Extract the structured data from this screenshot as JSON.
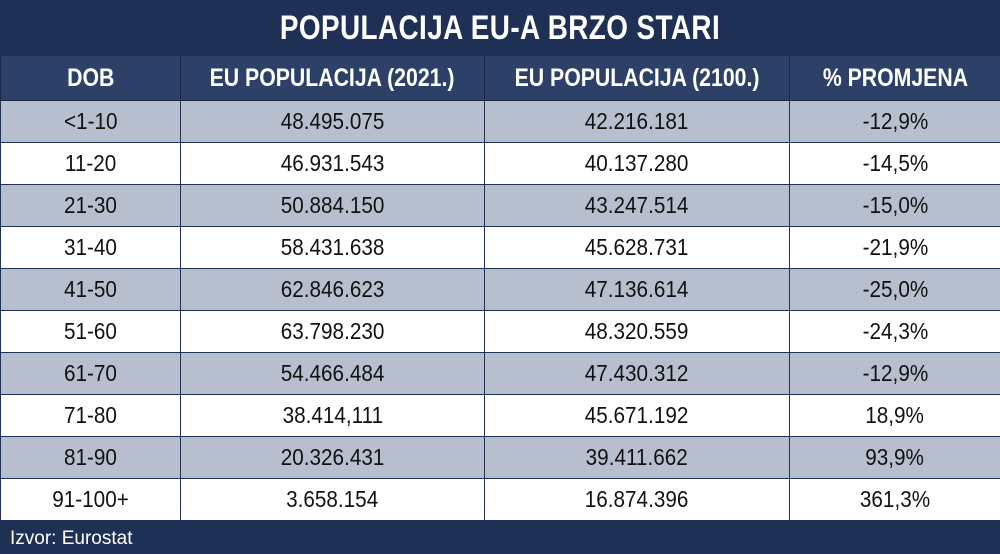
{
  "chart_data": {
    "type": "table",
    "title": "POPULACIJA EU-A BRZO STARI",
    "columns": [
      "DOB",
      "EU POPULACIJA (2021.)",
      "EU POPULACIJA (2100.)",
      "% PROMJENA"
    ],
    "rows": [
      [
        "<1-10",
        "48.495.075",
        "42.216.181",
        "-12,9%"
      ],
      [
        "11-20",
        "46.931.543",
        "40.137.280",
        "-14,5%"
      ],
      [
        "21-30",
        "50.884.150",
        "43.247.514",
        "-15,0%"
      ],
      [
        "31-40",
        "58.431.638",
        "45.628.731",
        "-21,9%"
      ],
      [
        "41-50",
        "62.846.623",
        "47.136.614",
        "-25,0%"
      ],
      [
        "51-60",
        "63.798.230",
        "48.320.559",
        "-24,3%"
      ],
      [
        "61-70",
        "54.466.484",
        "47.430.312",
        "-12,9%"
      ],
      [
        "71-80",
        "38.414,111",
        "45.671.192",
        "18,9%"
      ],
      [
        "81-90",
        "20.326.431",
        "39.411.662",
        "93,9%"
      ],
      [
        "91-100+",
        "3.658.154",
        "16.874.396",
        "361,3%"
      ]
    ],
    "source": "Izvor: Eurostat"
  },
  "colors": {
    "background": "#1e3154",
    "header": "#2c4068",
    "row_shaded": "#b7bfcf",
    "row_plain": "#ffffff"
  }
}
